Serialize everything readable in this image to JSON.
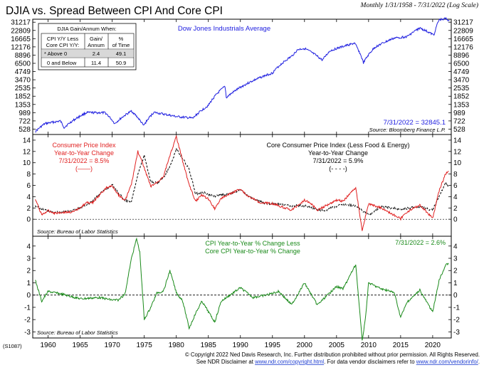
{
  "header": {
    "title": "DJIA vs. Spread Between CPI And Core CPI",
    "subtitle": "Monthly 1/31/1958 - 7/31/2022 (Log Scale)"
  },
  "table": {
    "title": "DJIA Gain/Annum When:",
    "col_headers": [
      "CPI Y/Y Less\nCore CPI Y/Y:",
      "Gain/\nAnnum",
      "%\nof Time"
    ],
    "rows": [
      {
        "label": "* Above 0",
        "gain": "2.4",
        "pct": "49.1"
      },
      {
        "label": "0 and Below",
        "gain": "11.4",
        "pct": "50.9"
      }
    ]
  },
  "footer": {
    "code": "(S1087)",
    "line1": "© Copyright 2022 Ned Davis Research, Inc. Further distribution prohibited without prior permission. All Rights Reserved.",
    "line2_prefix": "See NDR Disclaimer at ",
    "line2_link1": "www.ndr.com/copyright.html",
    "line2_mid": ". For data vendor disclaimers refer to ",
    "line2_link2": "www.ndr.com/vendorinfo/",
    "line2_suffix": "."
  },
  "colors": {
    "djia": "#2020e0",
    "cpi": "#e02020",
    "core": "#000000",
    "spread": "#1a8a1a"
  },
  "chart_data": [
    {
      "type": "line",
      "title": "Dow Jones Industrials Average",
      "scale": "log",
      "ylim": [
        430,
        35000
      ],
      "yticks": [
        528,
        722,
        989,
        1353,
        1852,
        2535,
        3470,
        4749,
        6500,
        8896,
        12176,
        16665,
        22809,
        31217
      ],
      "annotation": "7/31/2022 = 32845.1",
      "source": "Source: Bloomberg Finance L.P.",
      "series": [
        {
          "name": "DJIA",
          "x": [
            1958,
            1959.5,
            1961.9,
            1962.5,
            1966,
            1968.9,
            1970.4,
            1973,
            1974.9,
            1976.5,
            1980,
            1982.6,
            1985,
            1987.6,
            1987.8,
            1990,
            1995,
            1998,
            1999,
            2000,
            2002.8,
            2004,
            2007.8,
            2009.2,
            2011,
            2014,
            2016,
            2018,
            2020.2,
            2020.5,
            2021,
            2022,
            2022.6
          ],
          "values": [
            480,
            650,
            720,
            560,
            990,
            985,
            650,
            1050,
            600,
            1000,
            850,
            800,
            1300,
            2700,
            1750,
            2600,
            4500,
            8500,
            11000,
            11500,
            7300,
            10500,
            14000,
            6600,
            12000,
            17000,
            18000,
            25000,
            19000,
            25000,
            34000,
            36000,
            32845
          ]
        }
      ]
    },
    {
      "type": "line",
      "title": "Consumer Price Index vs Core Consumer Price Index",
      "ylim": [
        -3,
        15
      ],
      "yticks": [
        0,
        2,
        4,
        6,
        8,
        10,
        12,
        14
      ],
      "annotation_cpi": "Consumer Price Index\nYear-to-Year Change\n7/31/2022 = 8.5%\n(——)",
      "annotation_core": "Core Consumer Price Index (Less Food & Energy)\nYear-to-Year Change\n7/31/2022 = 5.9%\n(- - - -)",
      "source": "Source: Bureau of Labor Statistics",
      "series": [
        {
          "name": "CPI",
          "x": [
            1958,
            1959,
            1960,
            1961,
            1962,
            1964,
            1966,
            1967,
            1968,
            1969,
            1970,
            1971,
            1972,
            1973,
            1974,
            1975,
            1976,
            1977,
            1978,
            1979,
            1980,
            1981,
            1982,
            1983,
            1984,
            1985,
            1986,
            1987,
            1990,
            1991,
            1993,
            1995,
            1998,
            2000,
            2001,
            2002,
            2005,
            2006,
            2008,
            2009,
            2010,
            2012,
            2015,
            2016,
            2018,
            2020,
            2021,
            2022,
            2022.5
          ],
          "values": [
            3.5,
            0.8,
            1.5,
            1.1,
            1.2,
            1.3,
            2.9,
            3.0,
            4.2,
            5.5,
            5.9,
            4.3,
            3.3,
            6.2,
            12.0,
            9.1,
            5.8,
            6.5,
            7.6,
            11.3,
            14.6,
            10.3,
            6.1,
            3.2,
            4.3,
            3.6,
            1.9,
            3.7,
            5.4,
            4.2,
            3.0,
            2.8,
            1.6,
            3.4,
            2.8,
            1.6,
            3.4,
            3.2,
            5.6,
            -2.0,
            2.7,
            2.0,
            0.1,
            1.3,
            2.5,
            0.2,
            5.0,
            8.0,
            8.5
          ]
        },
        {
          "name": "Core CPI",
          "x": [
            1958,
            1959,
            1960,
            1962,
            1964,
            1966,
            1967,
            1968,
            1969,
            1970,
            1971,
            1972,
            1973,
            1974,
            1975,
            1976,
            1977,
            1978,
            1979,
            1980,
            1981,
            1982,
            1983,
            1984,
            1986,
            1988,
            1990,
            1992,
            1994,
            1996,
            1998,
            2000,
            2003,
            2006,
            2008,
            2010,
            2012,
            2015,
            2018,
            2020,
            2021,
            2022,
            2022.5
          ],
          "values": [
            2.4,
            1.8,
            1.5,
            1.2,
            1.6,
            2.4,
            3.4,
            4.5,
            5.3,
            6.1,
            4.6,
            3.3,
            3.2,
            8.0,
            11.3,
            6.7,
            6.4,
            7.4,
            9.3,
            12.4,
            10.8,
            8.8,
            4.5,
            4.8,
            4.1,
            4.4,
            5.2,
            3.5,
            2.8,
            2.6,
            2.4,
            2.4,
            1.5,
            2.7,
            2.3,
            0.8,
            2.2,
            1.8,
            2.2,
            1.6,
            4.0,
            6.4,
            5.9
          ]
        }
      ]
    },
    {
      "type": "line",
      "title": "CPI Year-to-Year % Change Less Core CPI Year-to-Year % Change",
      "ylim": [
        -3.5,
        4.8
      ],
      "yticks": [
        -3,
        -2,
        -1,
        0,
        1,
        2,
        3,
        4
      ],
      "annotation": "7/31/2022 = 2.6%",
      "source": "Source: Bureau of Labor Statistics",
      "xticks": [
        1960,
        1965,
        1970,
        1975,
        1980,
        1985,
        1990,
        1995,
        2000,
        2005,
        2010,
        2015,
        2020
      ],
      "series": [
        {
          "name": "Spread",
          "x": [
            1958,
            1959,
            1960,
            1962,
            1965,
            1968,
            1970,
            1971,
            1972,
            1973,
            1973.8,
            1974.3,
            1975,
            1976,
            1977,
            1978,
            1979,
            1980,
            1981,
            1982,
            1983,
            1984,
            1986,
            1987,
            1990,
            1992,
            1994,
            1996,
            1998,
            2000,
            2002,
            2005,
            2006,
            2008,
            2009,
            2009.5,
            2010,
            2012,
            2014,
            2015,
            2016,
            2018,
            2020,
            2021,
            2022,
            2022.5
          ],
          "values": [
            1.2,
            -0.5,
            0.3,
            0.1,
            -0.3,
            -0.2,
            -0.4,
            -0.4,
            0.1,
            3.0,
            4.6,
            3.5,
            -2.0,
            -1.0,
            0.2,
            0.3,
            2.0,
            0.2,
            -0.5,
            -2.7,
            -1.5,
            -0.5,
            -2.2,
            -0.5,
            0.6,
            -0.2,
            0.0,
            0.3,
            -0.8,
            1.0,
            -0.8,
            0.7,
            0.5,
            2.5,
            -3.7,
            -2.0,
            1.0,
            0.5,
            0.2,
            -1.8,
            -0.6,
            0.4,
            -1.4,
            1.2,
            2.4,
            2.6
          ]
        }
      ]
    }
  ]
}
